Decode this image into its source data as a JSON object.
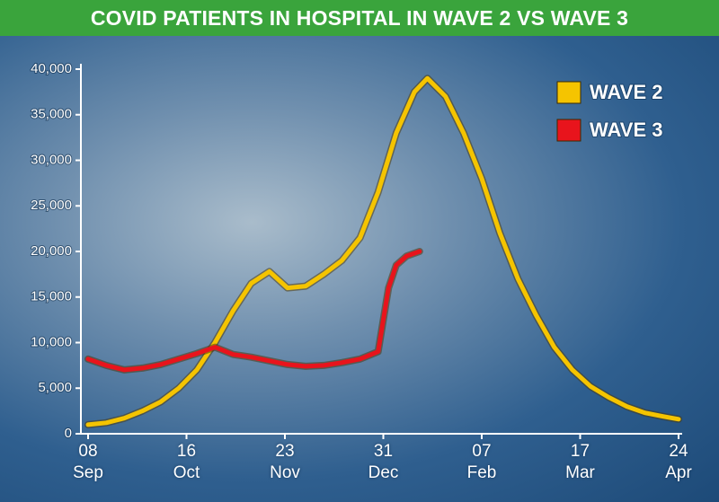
{
  "chart_data": {
    "type": "line",
    "title": "COVID PATIENTS IN HOSPITAL IN WAVE 2 VS WAVE 3",
    "xlim": [
      "08 Sep",
      "24 Apr"
    ],
    "xticks": [
      "08 Sep",
      "16 Oct",
      "23 Nov",
      "31 Dec",
      "07 Feb",
      "17 Mar",
      "24 Apr"
    ],
    "ylim": [
      0,
      40000
    ],
    "yticks": [
      0,
      {
        "value": 5000,
        "label": "5,000"
      },
      {
        "value": 10000,
        "label": "10,000"
      },
      {
        "value": 15000,
        "label": "15,000"
      },
      {
        "value": 20000,
        "label": "20,000"
      },
      {
        "value": 25000,
        "label": "25,000"
      },
      {
        "value": 30000,
        "label": "30,000"
      },
      {
        "value": 35000,
        "label": "35,000"
      },
      {
        "value": 40000,
        "label": "40,000"
      }
    ],
    "grid": false,
    "legend": "top-right",
    "series": [
      {
        "name": "WAVE 2",
        "color": "#f5c400",
        "x": [
          "08 Sep",
          "15 Sep",
          "22 Sep",
          "29 Sep",
          "06 Oct",
          "13 Oct",
          "20 Oct",
          "27 Oct",
          "03 Nov",
          "10 Nov",
          "17 Nov",
          "24 Nov",
          "01 Dec",
          "08 Dec",
          "15 Dec",
          "22 Dec",
          "29 Dec",
          "05 Jan",
          "12 Jan",
          "17 Jan",
          "24 Jan",
          "31 Jan",
          "07 Feb",
          "14 Feb",
          "21 Feb",
          "28 Feb",
          "07 Mar",
          "14 Mar",
          "21 Mar",
          "28 Mar",
          "04 Apr",
          "11 Apr",
          "18 Apr",
          "24 Apr"
        ],
        "values": [
          1000,
          1200,
          1700,
          2500,
          3500,
          5000,
          7000,
          10000,
          13500,
          16500,
          17800,
          16000,
          16200,
          17500,
          19000,
          21500,
          26500,
          33000,
          37500,
          39000,
          37000,
          33000,
          28000,
          22000,
          17000,
          13000,
          9500,
          7000,
          5200,
          4000,
          3000,
          2300,
          1900,
          1600
        ]
      },
      {
        "name": "WAVE 3",
        "color": "#e8141c",
        "x": [
          "08 Sep",
          "15 Sep",
          "22 Sep",
          "29 Sep",
          "06 Oct",
          "13 Oct",
          "20 Oct",
          "27 Oct",
          "03 Nov",
          "10 Nov",
          "17 Nov",
          "24 Nov",
          "01 Dec",
          "08 Dec",
          "15 Dec",
          "22 Dec",
          "29 Dec",
          "02 Jan",
          "05 Jan",
          "09 Jan",
          "14 Jan"
        ],
        "values": [
          8200,
          7500,
          7000,
          7200,
          7600,
          8200,
          8800,
          9500,
          8700,
          8400,
          8000,
          7600,
          7400,
          7500,
          7800,
          8200,
          9000,
          16000,
          18500,
          19500,
          20000
        ]
      }
    ]
  }
}
